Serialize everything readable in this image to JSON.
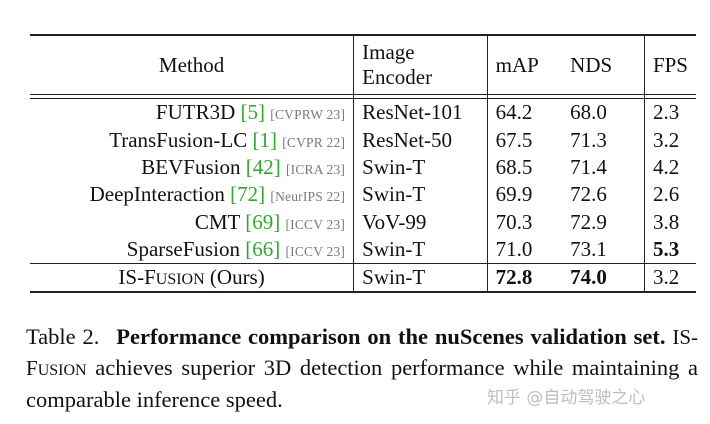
{
  "table": {
    "header": {
      "method": "Method",
      "encoder_line1": "Image",
      "encoder_line2": "Encoder",
      "map": "mAP",
      "nds": "NDS",
      "fps": "FPS"
    },
    "rows": [
      {
        "method": "FUTR3D",
        "ref": "[5]",
        "venue": "[CVPRW 23]",
        "encoder": "ResNet-101",
        "map": "64.2",
        "nds": "68.0",
        "fps": "2.3"
      },
      {
        "method": "TransFusion-LC",
        "ref": "[1]",
        "venue": "[CVPR 22]",
        "encoder": "ResNet-50",
        "map": "67.5",
        "nds": "71.3",
        "fps": "3.2"
      },
      {
        "method": "BEVFusion",
        "ref": "[42]",
        "venue": "[ICRA 23]",
        "encoder": "Swin-T",
        "map": "68.5",
        "nds": "71.4",
        "fps": "4.2"
      },
      {
        "method": "DeepInteraction",
        "ref": "[72]",
        "venue": "[NeurIPS 22]",
        "encoder": "Swin-T",
        "map": "69.9",
        "nds": "72.6",
        "fps": "2.6"
      },
      {
        "method": "CMT",
        "ref": "[69]",
        "venue": "[ICCV 23]",
        "encoder": "VoV-99",
        "map": "70.3",
        "nds": "72.9",
        "fps": "3.8"
      },
      {
        "method": "SparseFusion",
        "ref": "[66]",
        "venue": "[ICCV 23]",
        "encoder": "Swin-T",
        "map": "71.0",
        "nds": "73.1",
        "fps": "5.3"
      }
    ],
    "ours": {
      "method_prefix": "IS-F",
      "method_smallcaps": "USION",
      "method_suffix": "(Ours)",
      "encoder": "Swin-T",
      "map": "72.8",
      "nds": "74.0",
      "fps": "3.2"
    }
  },
  "caption": {
    "label": "Table 2.",
    "bold": "Performance comparison on the nuScenes validation set.",
    "name_prefix": "IS-F",
    "name_smallcaps": "USION",
    "rest": "achieves superior 3D detection performance while maintaining a comparable inference speed."
  },
  "watermark": "知乎 @自动驾驶之心",
  "colors": {
    "reference_link": "#2fa82f",
    "venue_text": "#7a7a7a"
  }
}
